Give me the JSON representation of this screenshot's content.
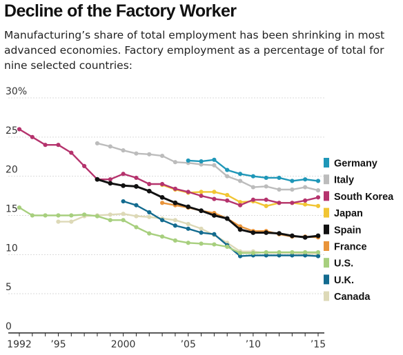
{
  "title": "Decline of the Factory Worker",
  "subtitle": "Manufacturing’s share of total employment has been shrinking in most advanced economies. Factory employment as a percentage of total for nine selected countries:",
  "chart_data": {
    "type": "line",
    "title": "Decline of the Factory Worker",
    "xlabel": "",
    "ylabel": "",
    "xlim": [
      1992,
      2015
    ],
    "ylim": [
      0,
      30
    ],
    "y_ticks": [
      {
        "value": 30,
        "label": "30%"
      },
      {
        "value": 25,
        "label": "25"
      },
      {
        "value": 20,
        "label": "20"
      },
      {
        "value": 15,
        "label": "15"
      },
      {
        "value": 10,
        "label": "10"
      },
      {
        "value": 5,
        "label": "5"
      },
      {
        "value": 0,
        "label": "0"
      }
    ],
    "x_ticks": [
      {
        "value": 1992,
        "label": "1992"
      },
      {
        "value": 1995,
        "label": "’95"
      },
      {
        "value": 2000,
        "label": "2000"
      },
      {
        "value": 2005,
        "label": "’05"
      },
      {
        "value": 2010,
        "label": "’10"
      },
      {
        "value": 2015,
        "label": "’15"
      }
    ],
    "grid": true,
    "legend_position": "right",
    "series": [
      {
        "name": "Germany",
        "color": "#1f97b8",
        "x": [
          2005,
          2006,
          2007,
          2008,
          2009,
          2010,
          2011,
          2012,
          2013,
          2014,
          2015
        ],
        "y": [
          22.0,
          21.9,
          22.1,
          20.8,
          20.3,
          20.0,
          19.8,
          19.8,
          19.4,
          19.6,
          19.4
        ]
      },
      {
        "name": "Italy",
        "color": "#bcbcbc",
        "x": [
          1998,
          1999,
          2000,
          2001,
          2002,
          2003,
          2004,
          2005,
          2006,
          2007,
          2008,
          2009,
          2010,
          2011,
          2012,
          2013,
          2014,
          2015
        ],
        "y": [
          24.2,
          23.8,
          23.3,
          22.9,
          22.8,
          22.6,
          21.8,
          21.7,
          21.5,
          21.4,
          20.0,
          19.4,
          18.6,
          18.7,
          18.3,
          18.3,
          18.6,
          18.2
        ]
      },
      {
        "name": "South Korea",
        "color": "#b5336d",
        "x": [
          1992,
          1993,
          1994,
          1995,
          1996,
          1997,
          1998,
          1999,
          2000,
          2001,
          2002,
          2003,
          2004,
          2005,
          2006,
          2007,
          2008,
          2009,
          2010,
          2011,
          2012,
          2013,
          2014,
          2015
        ],
        "y": [
          26.0,
          25.0,
          24.0,
          24.0,
          23.0,
          21.3,
          19.6,
          19.6,
          20.3,
          19.8,
          19.0,
          19.0,
          18.4,
          18.0,
          17.5,
          17.1,
          16.9,
          16.3,
          17.0,
          17.0,
          16.6,
          16.6,
          16.9,
          17.3
        ]
      },
      {
        "name": "Japan",
        "color": "#f1c534",
        "x": [
          2003,
          2004,
          2005,
          2006,
          2007,
          2008,
          2009,
          2010,
          2011,
          2012,
          2013,
          2014,
          2015
        ],
        "y": [
          18.9,
          18.3,
          17.9,
          18.0,
          18.0,
          17.6,
          16.7,
          16.8,
          16.2,
          16.6,
          16.6,
          16.4,
          16.2
        ]
      },
      {
        "name": "Spain",
        "color": "#111111",
        "x": [
          1998,
          1999,
          2000,
          2001,
          2002,
          2003,
          2004,
          2005,
          2006,
          2007,
          2008,
          2009,
          2010,
          2011,
          2012,
          2013,
          2014,
          2015
        ],
        "y": [
          19.6,
          19.1,
          18.8,
          18.7,
          18.1,
          17.3,
          16.6,
          16.1,
          15.6,
          15.0,
          14.6,
          13.2,
          12.8,
          12.8,
          12.7,
          12.4,
          12.2,
          12.4
        ]
      },
      {
        "name": "France",
        "color": "#e9943a",
        "x": [
          2003,
          2004,
          2005,
          2006,
          2007,
          2008,
          2009,
          2010,
          2011,
          2012,
          2013,
          2014,
          2015
        ],
        "y": [
          16.6,
          16.3,
          16.0,
          15.6,
          15.3,
          14.6,
          13.6,
          13.0,
          13.0,
          12.6,
          12.3,
          12.3,
          12.2
        ]
      },
      {
        "name": "U.S.",
        "color": "#a7cf7e",
        "x": [
          1992,
          1993,
          1994,
          1995,
          1996,
          1997,
          1998,
          1999,
          2000,
          2001,
          2002,
          2003,
          2004,
          2005,
          2006,
          2007,
          2008,
          2009,
          2010,
          2011,
          2012,
          2013,
          2014,
          2015
        ],
        "y": [
          16.0,
          15.0,
          15.0,
          15.0,
          15.0,
          15.1,
          14.9,
          14.4,
          14.4,
          13.5,
          12.7,
          12.3,
          11.8,
          11.5,
          11.4,
          11.3,
          11.0,
          10.2,
          10.2,
          10.3,
          10.3,
          10.3,
          10.3,
          10.3
        ]
      },
      {
        "name": "U.K.",
        "color": "#136b8f",
        "x": [
          2000,
          2001,
          2002,
          2003,
          2004,
          2005,
          2006,
          2007,
          2008,
          2009,
          2010,
          2011,
          2012,
          2013,
          2014,
          2015
        ],
        "y": [
          16.8,
          16.3,
          15.4,
          14.4,
          13.7,
          13.3,
          12.8,
          12.6,
          11.2,
          9.8,
          9.9,
          9.9,
          9.9,
          9.9,
          9.9,
          9.8
        ]
      },
      {
        "name": "Canada",
        "color": "#ddd9b7",
        "x": [
          1995,
          1996,
          1997,
          1998,
          1999,
          2000,
          2001,
          2002,
          2003,
          2004,
          2005,
          2006,
          2007,
          2008,
          2009,
          2010,
          2011,
          2012,
          2013,
          2014,
          2015
        ],
        "y": [
          14.2,
          14.2,
          14.9,
          15.0,
          15.1,
          15.2,
          14.9,
          14.8,
          14.6,
          14.4,
          13.9,
          13.3,
          12.5,
          11.5,
          10.4,
          10.4,
          10.2,
          10.2,
          10.2,
          10.1,
          10.1
        ]
      }
    ]
  }
}
